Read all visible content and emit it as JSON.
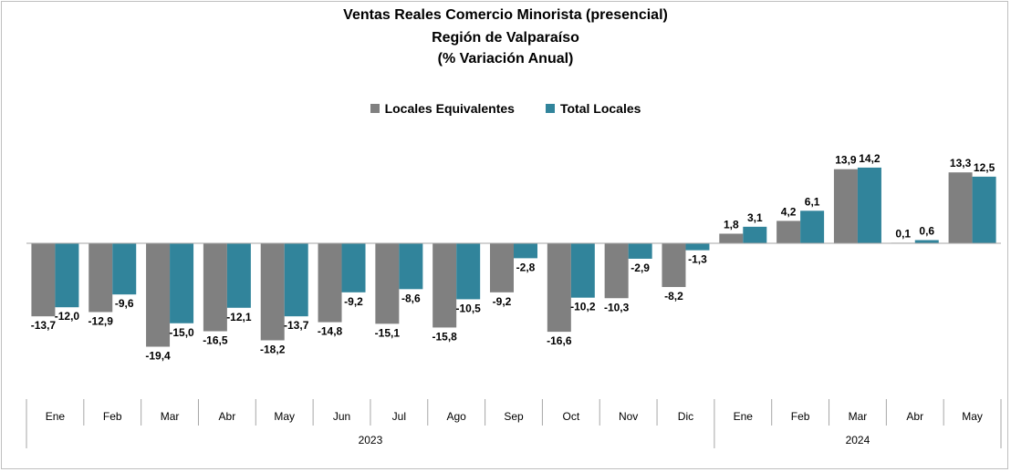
{
  "chart_data": {
    "type": "bar",
    "title": [
      "Ventas Reales Comercio Minorista (presencial)",
      "Región de Valparaíso",
      "(% Variación Anual)"
    ],
    "categories": [
      "Ene",
      "Feb",
      "Mar",
      "Abr",
      "May",
      "Jun",
      "Jul",
      "Ago",
      "Sep",
      "Oct",
      "Nov",
      "Dic",
      "Ene",
      "Feb",
      "Mar",
      "Abr",
      "May"
    ],
    "groups": [
      {
        "label": "2023",
        "count": 12
      },
      {
        "label": "2024",
        "count": 5
      }
    ],
    "series": [
      {
        "name": "Locales Equivalentes",
        "color": "#808080",
        "values": [
          -13.7,
          -12.9,
          -19.4,
          -16.5,
          -18.2,
          -14.8,
          -15.1,
          -15.8,
          -9.2,
          -16.6,
          -10.3,
          -8.2,
          1.8,
          4.2,
          13.9,
          0.1,
          13.3
        ],
        "labels": [
          "-13,7",
          "-12,9",
          "-19,4",
          "-16,5",
          "-18,2",
          "-14,8",
          "-15,1",
          "-15,8",
          "-9,2",
          "-16,6",
          "-10,3",
          "-8,2",
          "1,8",
          "4,2",
          "13,9",
          "0,1",
          "13,3"
        ]
      },
      {
        "name": "Total Locales",
        "color": "#31849B",
        "values": [
          -12.0,
          -9.6,
          -15.0,
          -12.1,
          -13.7,
          -9.2,
          -8.6,
          -10.5,
          -2.8,
          -10.2,
          -2.9,
          -1.3,
          3.1,
          6.1,
          14.2,
          0.6,
          12.5
        ],
        "labels": [
          "-12,0",
          "-9,6",
          "-15,0",
          "-12,1",
          "-13,7",
          "-9,2",
          "-8,6",
          "-10,5",
          "-2,8",
          "-10,2",
          "-2,9",
          "-1,3",
          "3,1",
          "6,1",
          "14,2",
          "0,6",
          "12,5"
        ]
      }
    ],
    "ylim": [
      -22,
      16
    ],
    "grid": false,
    "legend": "top"
  }
}
